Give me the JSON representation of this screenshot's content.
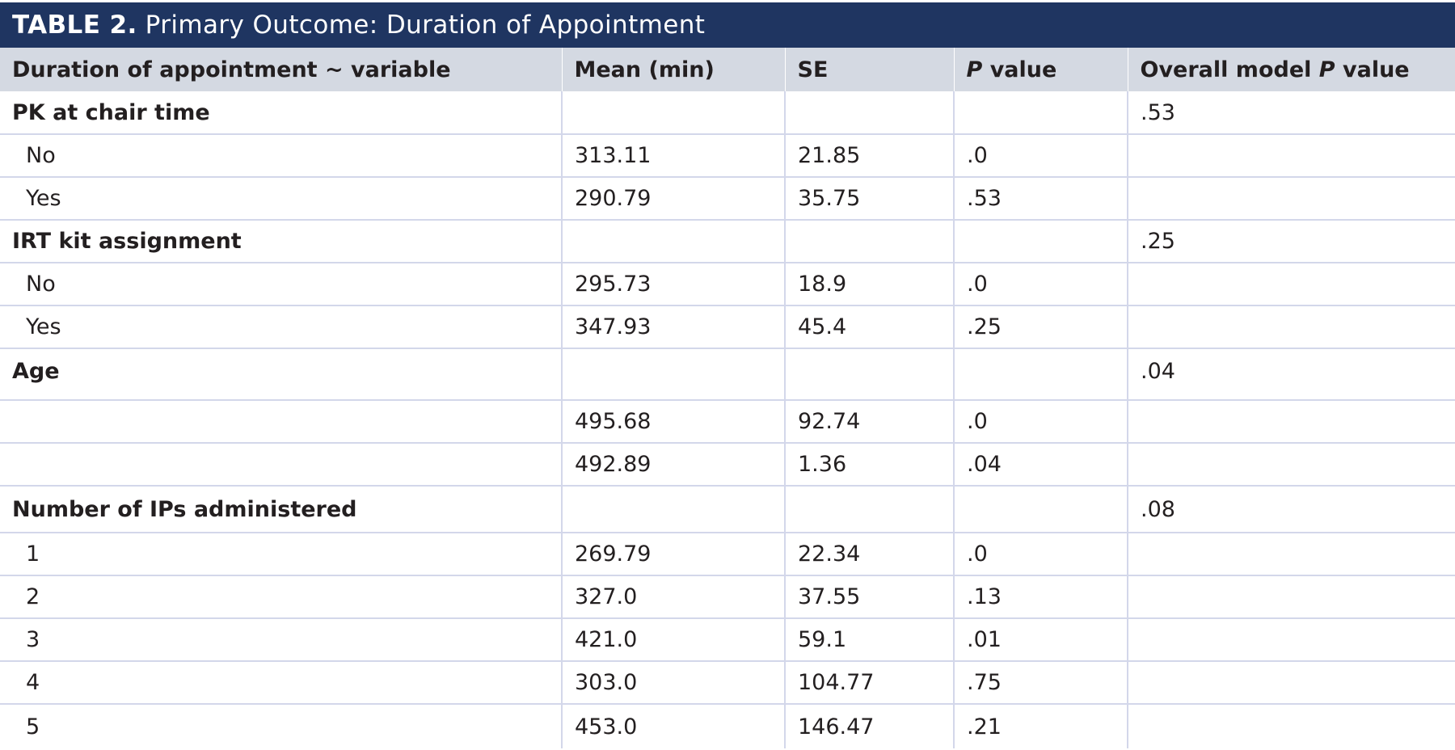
{
  "title": {
    "label": "TABLE 2.",
    "text": "Primary Outcome: Duration of Appointment"
  },
  "headers": {
    "variable": "Duration of appointment ~ variable",
    "mean": "Mean (min)",
    "se": "SE",
    "p_italic": "P",
    "p_rest": " value",
    "overall_prefix": "Overall model ",
    "overall_italic": "P",
    "overall_suffix": " value"
  },
  "rows": [
    {
      "variable": "PK at chair time",
      "mean": "",
      "se": "",
      "p": "",
      "overall": ".53"
    },
    {
      "variable": "No",
      "mean": "313.11",
      "se": "21.85",
      "p": ".0",
      "overall": ""
    },
    {
      "variable": "Yes",
      "mean": "290.79",
      "se": "35.75",
      "p": ".53",
      "overall": ""
    },
    {
      "variable": "IRT kit assignment",
      "mean": "",
      "se": "",
      "p": "",
      "overall": ".25"
    },
    {
      "variable": "No",
      "mean": "295.73",
      "se": "18.9",
      "p": ".0",
      "overall": ""
    },
    {
      "variable": "Yes",
      "mean": "347.93",
      "se": "45.4",
      "p": ".25",
      "overall": ""
    },
    {
      "variable": "Age",
      "mean": "",
      "se": "",
      "p": "",
      "overall": ".04"
    },
    {
      "variable": "",
      "mean": "495.68",
      "se": "92.74",
      "p": ".0",
      "overall": ""
    },
    {
      "variable": "",
      "mean": "492.89",
      "se": "1.36",
      "p": ".04",
      "overall": ""
    },
    {
      "variable": "Number of IPs administered",
      "mean": "",
      "se": "",
      "p": "",
      "overall": ".08"
    },
    {
      "variable": "1",
      "mean": "269.79",
      "se": "22.34",
      "p": ".0",
      "overall": ""
    },
    {
      "variable": "2",
      "mean": "327.0",
      "se": "37.55",
      "p": ".13",
      "overall": ""
    },
    {
      "variable": "3",
      "mean": "421.0",
      "se": "59.1",
      "p": ".01",
      "overall": ""
    },
    {
      "variable": "4",
      "mean": "303.0",
      "se": "104.77",
      "p": ".75",
      "overall": ""
    },
    {
      "variable": "5",
      "mean": "453.0",
      "se": "146.47",
      "p": ".21",
      "overall": ""
    }
  ]
}
